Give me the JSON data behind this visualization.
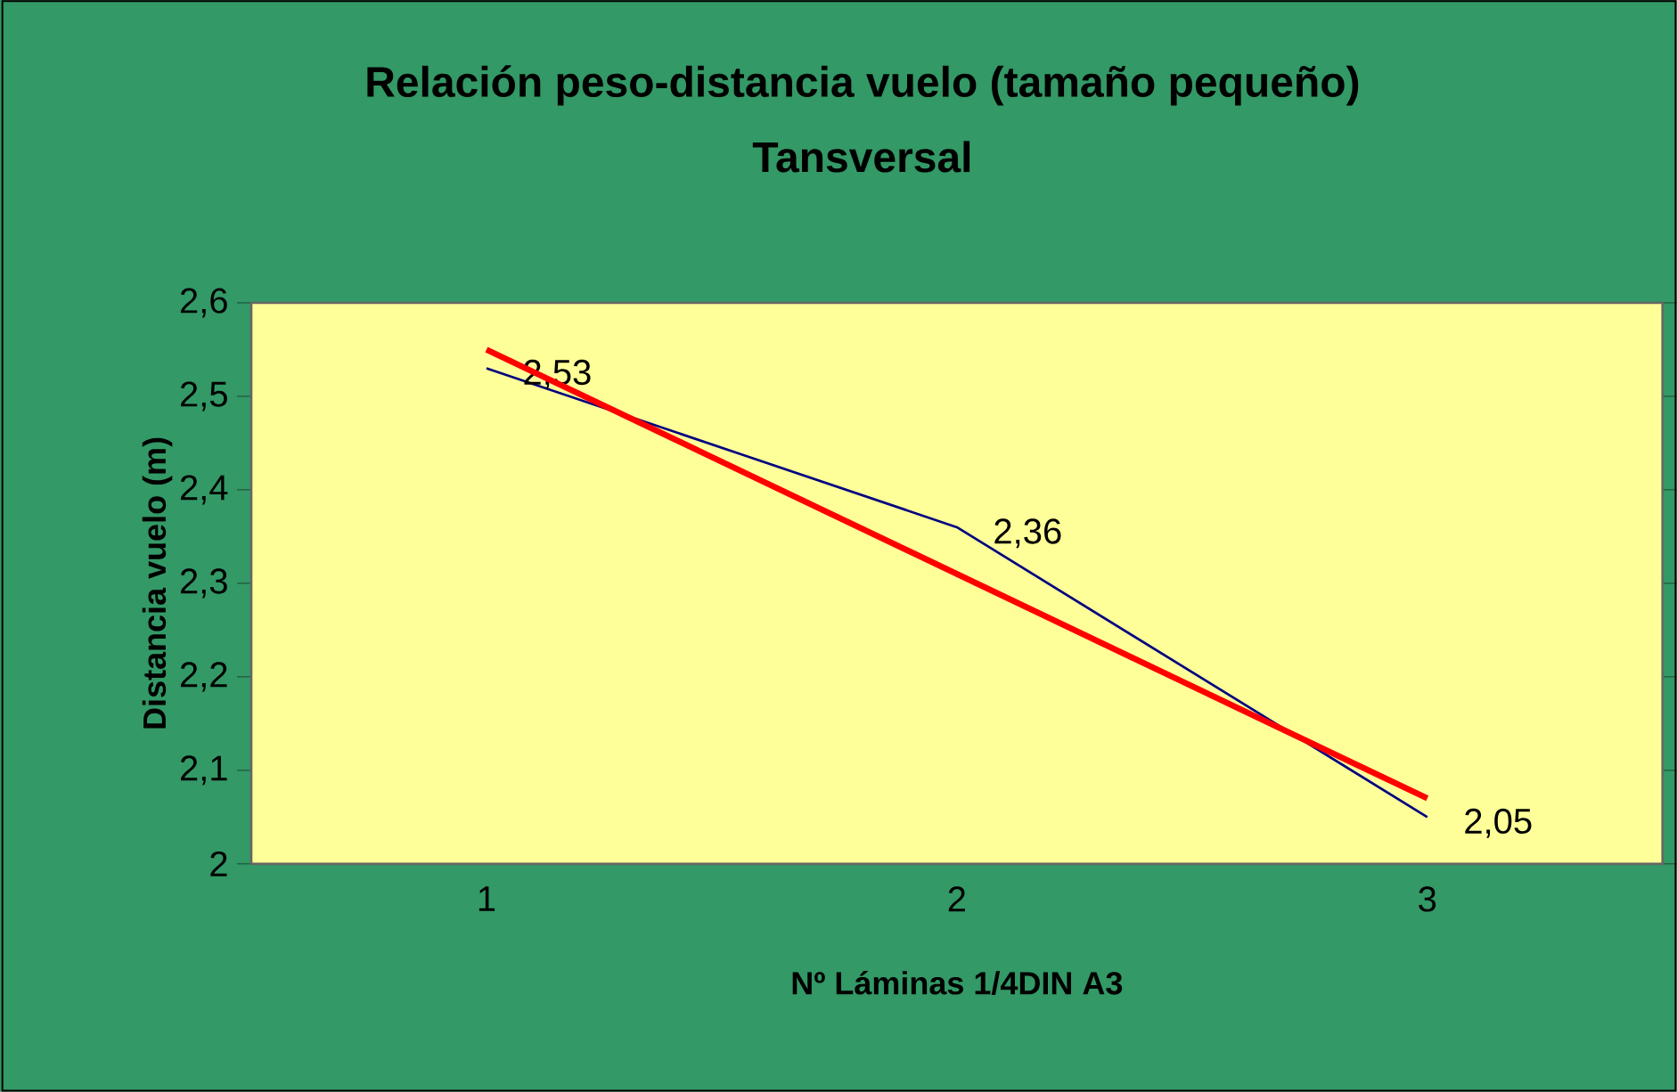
{
  "chart_data": {
    "type": "line",
    "title": "Relación peso-distancia vuelo (tamaño pequeño)",
    "subtitle": "Tansversal",
    "xlabel": "Nº Láminas 1/4DIN A3",
    "ylabel": "Distancia vuelo (m)",
    "categories": [
      "1",
      "2",
      "3"
    ],
    "series": [
      {
        "color": "#000080",
        "values": [
          2.53,
          2.36,
          2.05
        ],
        "value_labels": [
          "2,53",
          "2,36",
          "2,05"
        ]
      },
      {
        "color": "#ff0000",
        "values": [
          2.55,
          null,
          2.07
        ]
      }
    ],
    "ylim": [
      2,
      2.6
    ],
    "yticks": [
      {
        "value": 2,
        "label": "2"
      },
      {
        "value": 2.1,
        "label": "2,1"
      },
      {
        "value": 2.2,
        "label": "2,2"
      },
      {
        "value": 2.3,
        "label": "2,3"
      },
      {
        "value": 2.4,
        "label": "2,4"
      },
      {
        "value": 2.5,
        "label": "2,5"
      },
      {
        "value": 2.6,
        "label": "2,6"
      }
    ],
    "grid": false,
    "marker": "none",
    "line_style": "solid"
  }
}
